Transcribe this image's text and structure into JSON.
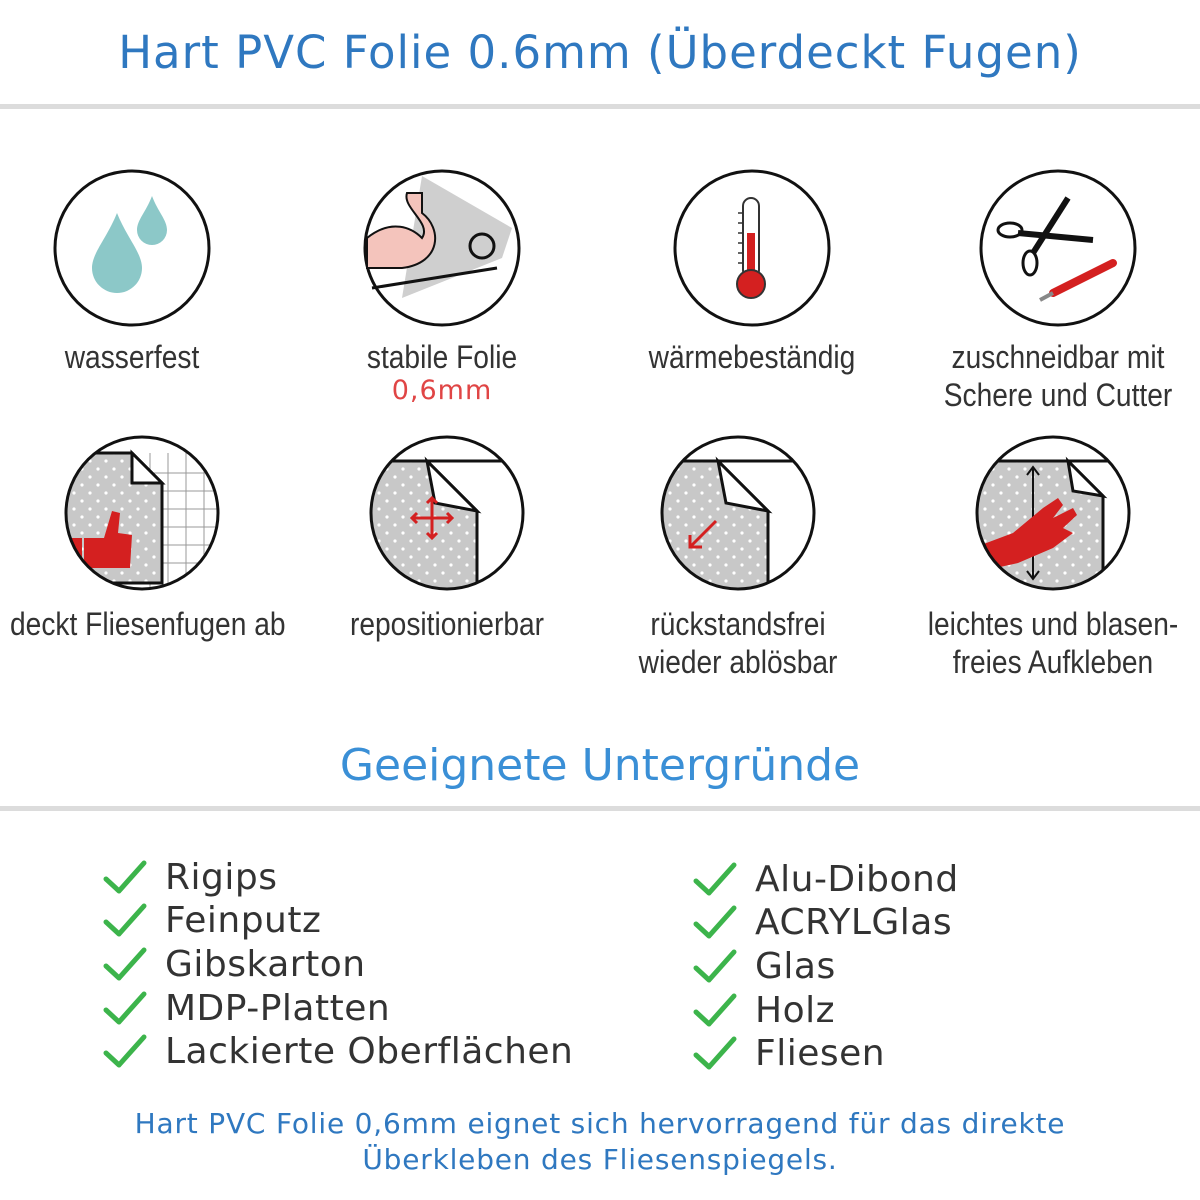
{
  "header": {
    "title": "Hart PVC Folie 0.6mm (Überdeckt Fugen)"
  },
  "features": [
    {
      "icon": "water-drops-icon",
      "label": "wasserfest"
    },
    {
      "icon": "strong-arm-icon",
      "label": "stabile Folie",
      "sublabel": "0,6mm"
    },
    {
      "icon": "thermometer-icon",
      "label": "wärmebeständig"
    },
    {
      "icon": "scissors-cutter-icon",
      "label": "zuschneidbar mit",
      "label2": "Schere und Cutter"
    },
    {
      "icon": "thumbs-up-tiles-icon",
      "label": "deckt Fliesenfugen ab"
    },
    {
      "icon": "move-arrows-icon",
      "label": "repositionierbar"
    },
    {
      "icon": "peel-arrow-icon",
      "label": "rückstandsfrei",
      "label2": "wieder ablösbar"
    },
    {
      "icon": "hand-smooth-icon",
      "label": "leichtes und blasen-",
      "label2": "freies Aufkleben"
    }
  ],
  "surfaces": {
    "title": "Geeignete Untergründe",
    "left": [
      "Rigips",
      "Feinputz",
      "Gibskarton",
      "MDP-Platten",
      "Lackierte Oberflächen"
    ],
    "right": [
      "Alu-Dibond",
      "ACRYLGlas",
      "Glas",
      "Holz",
      "Fliesen"
    ]
  },
  "footer": {
    "line1": "Hart PVC Folie 0,6mm eignet sich hervorragend für das direkte",
    "line2": "Überkleben des Fliesenspiegels."
  },
  "colors": {
    "title": "#2f78c0",
    "check": "#3cb44b",
    "accent_red": "#d42020",
    "drop": "#8cc8c8"
  }
}
